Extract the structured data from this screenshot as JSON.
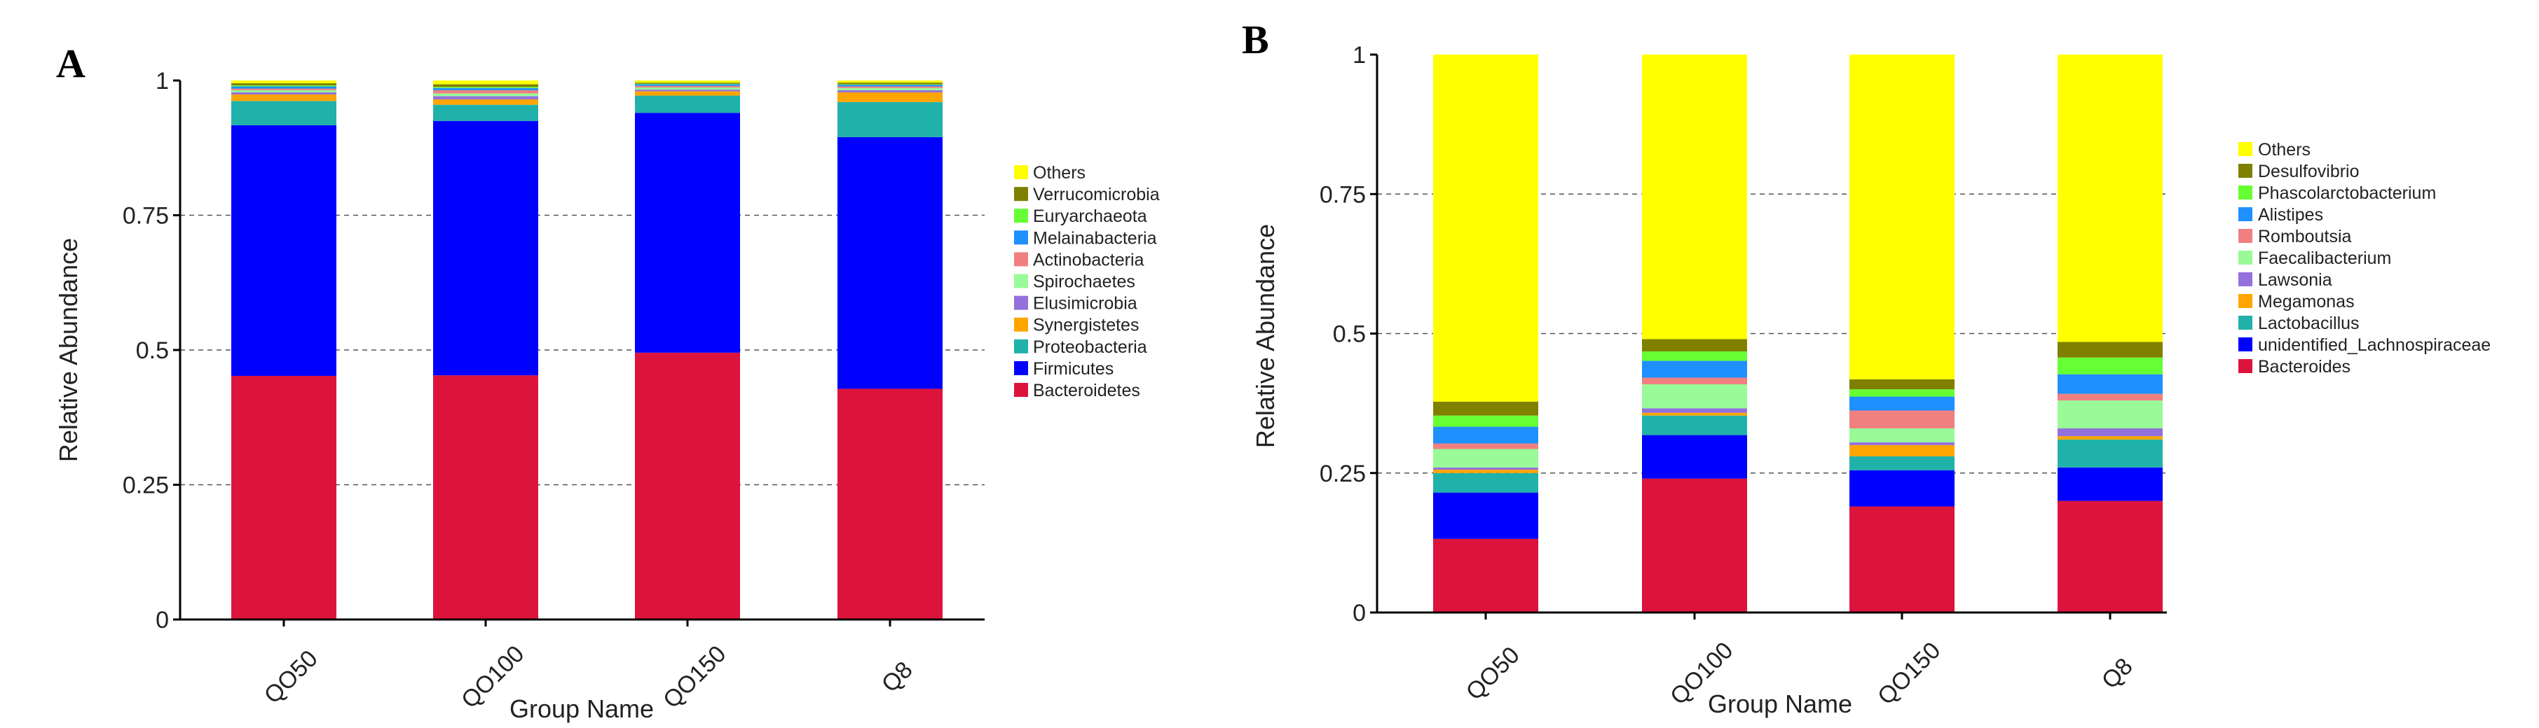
{
  "chart_data": [
    {
      "panel": "A",
      "type": "bar",
      "stacked": true,
      "xlabel": "Group Name",
      "ylabel": "Relative Abundance",
      "ylim": [
        0,
        1
      ],
      "yticks": [
        0,
        0.25,
        0.5,
        0.75,
        1
      ],
      "ytick_labels": [
        "0",
        "0.25",
        "0.5",
        "0.75",
        "1"
      ],
      "grid": "horizontal dashed",
      "legend_position": "right",
      "categories": [
        "QO50",
        "QO100",
        "QO150",
        "Q8"
      ],
      "series": [
        {
          "name": "Bacteroidetes",
          "color": "#dc143c",
          "values": [
            0.452,
            0.453,
            0.495,
            0.428
          ]
        },
        {
          "name": "Firmicutes",
          "color": "#0000ff",
          "values": [
            0.465,
            0.472,
            0.445,
            0.467
          ]
        },
        {
          "name": "Proteobacteria",
          "color": "#20b2aa",
          "values": [
            0.045,
            0.03,
            0.032,
            0.065
          ]
        },
        {
          "name": "Synergistetes",
          "color": "#ffa500",
          "values": [
            0.012,
            0.01,
            0.008,
            0.018
          ]
        },
        {
          "name": "Elusimicrobia",
          "color": "#9370db",
          "values": [
            0.004,
            0.006,
            0.003,
            0.004
          ]
        },
        {
          "name": "Spirochaetes",
          "color": "#98fb98",
          "values": [
            0.004,
            0.005,
            0.004,
            0.004
          ]
        },
        {
          "name": "Actinobacteria",
          "color": "#f08080",
          "values": [
            0.003,
            0.006,
            0.003,
            0.003
          ]
        },
        {
          "name": "Melainabacteria",
          "color": "#1e90ff",
          "values": [
            0.004,
            0.004,
            0.003,
            0.003
          ]
        },
        {
          "name": "Euryarchaeota",
          "color": "#66ff33",
          "values": [
            0.002,
            0.002,
            0.001,
            0.001
          ]
        },
        {
          "name": "Verrucomicrobia",
          "color": "#808000",
          "values": [
            0.004,
            0.005,
            0.002,
            0.003
          ]
        },
        {
          "name": "Others",
          "color": "#ffff00",
          "values": [
            0.005,
            0.007,
            0.004,
            0.004
          ]
        }
      ]
    },
    {
      "panel": "B",
      "type": "bar",
      "stacked": true,
      "xlabel": "Group Name",
      "ylabel": "Relative Abundance",
      "ylim": [
        0,
        1
      ],
      "yticks": [
        0,
        0.25,
        0.5,
        0.75,
        1
      ],
      "ytick_labels": [
        "0",
        "0.25",
        "0.5",
        "0.75",
        "1"
      ],
      "grid": "horizontal dashed",
      "legend_position": "right",
      "categories": [
        "QO50",
        "QO100",
        "QO150",
        "Q8"
      ],
      "series": [
        {
          "name": "Bacteroides",
          "color": "#dc143c",
          "values": [
            0.132,
            0.24,
            0.19,
            0.2
          ]
        },
        {
          "name": "unidentified_Lachnospiraceae",
          "color": "#0000ff",
          "values": [
            0.083,
            0.078,
            0.065,
            0.06
          ]
        },
        {
          "name": "Lactobacillus",
          "color": "#20b2aa",
          "values": [
            0.035,
            0.035,
            0.025,
            0.05
          ]
        },
        {
          "name": "Megamonas",
          "color": "#ffa500",
          "values": [
            0.006,
            0.005,
            0.02,
            0.006
          ]
        },
        {
          "name": "Lawsonia",
          "color": "#9370db",
          "values": [
            0.004,
            0.008,
            0.005,
            0.014
          ]
        },
        {
          "name": "Faecalibacterium",
          "color": "#98fb98",
          "values": [
            0.033,
            0.043,
            0.025,
            0.05
          ]
        },
        {
          "name": "Romboutsia",
          "color": "#f08080",
          "values": [
            0.01,
            0.012,
            0.032,
            0.012
          ]
        },
        {
          "name": "Alistipes",
          "color": "#1e90ff",
          "values": [
            0.03,
            0.03,
            0.025,
            0.035
          ]
        },
        {
          "name": "Phascolarctobacterium",
          "color": "#66ff33",
          "values": [
            0.02,
            0.017,
            0.013,
            0.03
          ]
        },
        {
          "name": "Desulfovibrio",
          "color": "#808000",
          "values": [
            0.025,
            0.022,
            0.018,
            0.028
          ]
        },
        {
          "name": "Others",
          "color": "#ffff00",
          "values": [
            0.622,
            0.51,
            0.582,
            0.515
          ]
        }
      ]
    }
  ]
}
